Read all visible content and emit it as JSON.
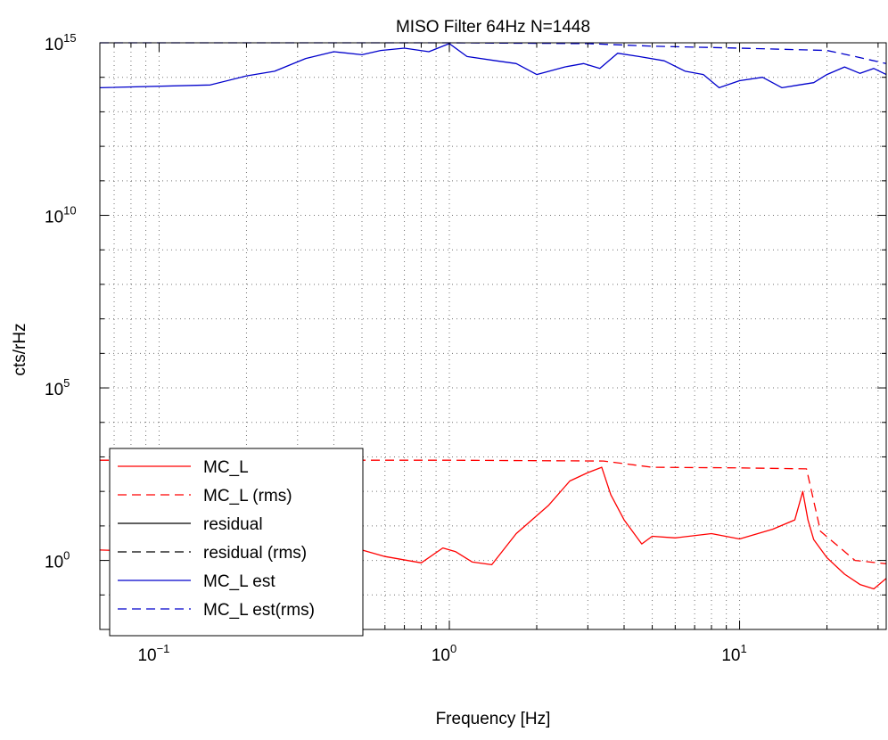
{
  "chart_data": {
    "type": "line",
    "title": "MISO Filter 64Hz N=1448",
    "xlabel": "Frequency [Hz]",
    "ylabel": "cts/rHz",
    "xscale": "log",
    "yscale": "log",
    "xlim": [
      0.0625,
      32
    ],
    "ylim": [
      0.01,
      1000000000000000.0
    ],
    "grid": true,
    "legend_position": "bottom-left",
    "x_ticks": [
      {
        "value": 0.1,
        "base": "10",
        "exp": "−1"
      },
      {
        "value": 1,
        "base": "10",
        "exp": "0"
      },
      {
        "value": 10,
        "base": "10",
        "exp": "1"
      }
    ],
    "y_ticks": [
      {
        "value": 1,
        "base": "10",
        "exp": "0"
      },
      {
        "value": 100000,
        "base": "10",
        "exp": "5"
      },
      {
        "value": 10000000000.0,
        "base": "10",
        "exp": "10"
      },
      {
        "value": 1000000000000000.0,
        "base": "10",
        "exp": "15"
      }
    ],
    "series": [
      {
        "name": "MC_L",
        "color": "#ff0000",
        "dash": "solid",
        "x": [
          0.0625,
          0.15,
          0.3,
          0.5,
          0.6,
          0.8,
          0.95,
          1.05,
          1.2,
          1.4,
          1.7,
          2.2,
          2.6,
          3.0,
          3.35,
          3.6,
          4.0,
          4.6,
          5.0,
          6.0,
          8.0,
          10.0,
          13.0,
          15.5,
          16.5,
          17.2,
          18.0,
          20.0,
          23.0,
          26.0,
          29.0,
          32.0
        ],
        "y": [
          2.0,
          1.6,
          1.9,
          2.0,
          1.3,
          0.85,
          2.3,
          1.8,
          0.9,
          0.75,
          6.0,
          40,
          200,
          350,
          500,
          80,
          15,
          3.0,
          5.0,
          4.5,
          6.0,
          4.2,
          8.0,
          15,
          100,
          15,
          4.0,
          1.2,
          0.4,
          0.2,
          0.15,
          0.3
        ]
      },
      {
        "name": "MC_L (rms)",
        "color": "#ff0000",
        "dash": "dashed",
        "x": [
          0.0625,
          1.0,
          3.4,
          5.0,
          10.0,
          17.0,
          19.0,
          25.0,
          32.0
        ],
        "y": [
          800,
          800,
          760,
          500,
          480,
          450,
          7.0,
          1.0,
          0.8
        ]
      },
      {
        "name": "residual",
        "color": "#000000",
        "dash": "solid",
        "x": [],
        "y": []
      },
      {
        "name": "residual (rms)",
        "color": "#000000",
        "dash": "dashed",
        "x": [],
        "y": []
      },
      {
        "name": "MC_L est",
        "color": "#0000cc",
        "dash": "solid",
        "x": [
          0.0625,
          0.15,
          0.2,
          0.25,
          0.32,
          0.4,
          0.5,
          0.58,
          0.7,
          0.85,
          1.0,
          1.15,
          1.45,
          1.7,
          2.0,
          2.5,
          2.9,
          3.3,
          3.8,
          4.5,
          5.5,
          6.5,
          7.5,
          8.5,
          10.0,
          12.0,
          14.0,
          16.0,
          18.0,
          20.0,
          23.0,
          26.0,
          29.0,
          32.0
        ],
        "y": [
          50000000000000.0,
          60000000000000.0,
          110000000000000.0,
          150000000000000.0,
          350000000000000.0,
          550000000000000.0,
          450000000000000.0,
          600000000000000.0,
          700000000000000.0,
          550000000000000.0,
          950000000000000.0,
          400000000000000.0,
          300000000000000.0,
          250000000000000.0,
          120000000000000.0,
          200000000000000.0,
          250000000000000.0,
          180000000000000.0,
          500000000000000.0,
          400000000000000.0,
          300000000000000.0,
          150000000000000.0,
          120000000000000.0,
          50000000000000.0,
          80000000000000.0,
          100000000000000.0,
          50000000000000.0,
          60000000000000.0,
          70000000000000.0,
          120000000000000.0,
          200000000000000.0,
          130000000000000.0,
          180000000000000.0,
          120000000000000.0
        ]
      },
      {
        "name": "MC_L est(rms)",
        "color": "#0000cc",
        "dash": "dashed",
        "x": [
          0.0625,
          1.0,
          3.0,
          5.0,
          10.0,
          20.0,
          25.0,
          32.0
        ],
        "y": [
          1000000000000000.0,
          1000000000000000.0,
          950000000000000.0,
          800000000000000.0,
          700000000000000.0,
          600000000000000.0,
          400000000000000.0,
          250000000000000.0
        ]
      }
    ]
  }
}
